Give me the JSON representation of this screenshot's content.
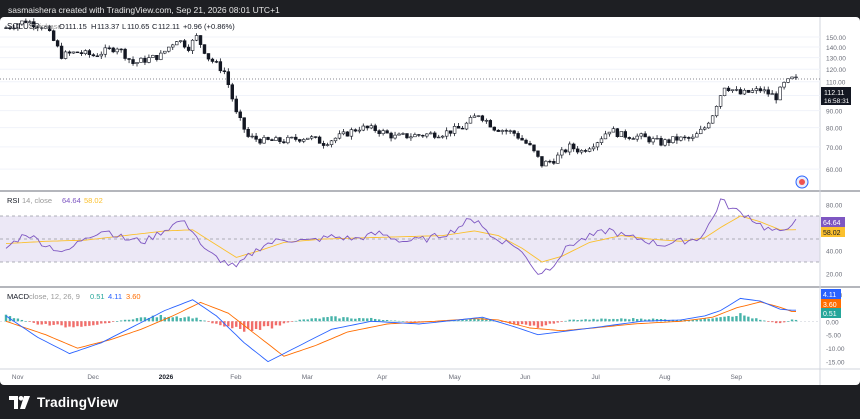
{
  "header": {
    "text": "sasmaishera created with TradingView.com, Sep 21, 2026 08:01 UTC+1"
  },
  "footer": {
    "brand": "TradingView"
  },
  "colors": {
    "up": "#2a2e39",
    "down": "#2a2e39",
    "rsi": "#7e57c2",
    "rsi_ma": "#fbc02d",
    "macd": "#2962ff",
    "signal": "#ff6d00",
    "hist_pos": "#26a69a",
    "hist_neg": "#ef5350"
  },
  "chart_data": [
    {
      "type": "candlestick",
      "title": "SOLUSD",
      "legend": {
        "symbol": "SOLUSD",
        "exchange": "Coinbase",
        "open_label": "O",
        "open": "111.15",
        "high_label": "H",
        "high": "113.37",
        "low_label": "L",
        "low": "110.65",
        "close_label": "C",
        "close": "112.11",
        "change": "+0.96 (+0.86%)"
      },
      "y_ticks": [
        "150.00",
        "140.00",
        "130.00",
        "120.00",
        "110.00",
        "100.00",
        "90.00",
        "80.00",
        "70.00",
        "60.00"
      ],
      "ylim": [
        53,
        170
      ],
      "scale": "log",
      "last_price": "112.11",
      "countdown": "16:58:31",
      "x_ticks": [
        "Nov",
        "Dec",
        "2026",
        "Feb",
        "Mar",
        "Apr",
        "May",
        "Jun",
        "Jul",
        "Aug",
        "Sep"
      ],
      "anchors": [
        [
          0,
          160
        ],
        [
          5,
          168
        ],
        [
          10,
          160
        ],
        [
          14,
          132
        ],
        [
          18,
          135
        ],
        [
          22,
          132
        ],
        [
          28,
          140
        ],
        [
          32,
          125
        ],
        [
          35,
          128
        ],
        [
          39,
          132
        ],
        [
          43,
          148
        ],
        [
          46,
          140
        ],
        [
          48,
          150
        ],
        [
          51,
          130
        ],
        [
          55,
          118
        ],
        [
          58,
          88
        ],
        [
          61,
          75
        ],
        [
          65,
          73
        ],
        [
          70,
          73
        ],
        [
          76,
          75
        ],
        [
          80,
          72
        ],
        [
          85,
          76
        ],
        [
          89,
          80
        ],
        [
          93,
          79
        ],
        [
          98,
          75
        ],
        [
          104,
          76
        ],
        [
          110,
          77
        ],
        [
          115,
          80
        ],
        [
          119,
          88
        ],
        [
          123,
          80
        ],
        [
          128,
          77
        ],
        [
          132,
          70
        ],
        [
          135,
          62
        ],
        [
          138,
          64
        ],
        [
          142,
          70
        ],
        [
          145,
          68
        ],
        [
          149,
          73
        ],
        [
          152,
          79
        ],
        [
          155,
          76
        ],
        [
          160,
          75
        ],
        [
          165,
          72
        ],
        [
          169,
          74
        ],
        [
          173,
          74
        ],
        [
          176,
          80
        ],
        [
          178,
          88
        ],
        [
          181,
          107
        ],
        [
          185,
          101
        ],
        [
          190,
          104
        ],
        [
          194,
          99
        ],
        [
          196,
          108
        ],
        [
          198,
          112
        ]
      ]
    },
    {
      "type": "line",
      "title": "RSI (14, close)",
      "legend": {
        "name": "RSI",
        "params": "14, close",
        "rsi": "64.64",
        "rsi_ma": "58.02"
      },
      "y_ticks": [
        "80.00",
        "60.00",
        "40.00",
        "20.00"
      ],
      "ylim": [
        10,
        90
      ],
      "bands": [
        70,
        50,
        30
      ],
      "series": [
        {
          "name": "RSI",
          "anchors": [
            [
              0,
              42
            ],
            [
              5,
              55
            ],
            [
              10,
              45
            ],
            [
              15,
              38
            ],
            [
              20,
              52
            ],
            [
              25,
              58
            ],
            [
              30,
              50
            ],
            [
              35,
              48
            ],
            [
              40,
              58
            ],
            [
              44,
              66
            ],
            [
              47,
              58
            ],
            [
              50,
              40
            ],
            [
              55,
              30
            ],
            [
              58,
              25
            ],
            [
              61,
              35
            ],
            [
              65,
              45
            ],
            [
              70,
              50
            ],
            [
              76,
              48
            ],
            [
              82,
              52
            ],
            [
              88,
              50
            ],
            [
              94,
              55
            ],
            [
              100,
              48
            ],
            [
              106,
              50
            ],
            [
              112,
              56
            ],
            [
              116,
              65
            ],
            [
              119,
              67
            ],
            [
              122,
              52
            ],
            [
              128,
              45
            ],
            [
              132,
              30
            ],
            [
              134,
              20
            ],
            [
              137,
              25
            ],
            [
              142,
              45
            ],
            [
              147,
              52
            ],
            [
              152,
              58
            ],
            [
              156,
              52
            ],
            [
              160,
              50
            ],
            [
              165,
              45
            ],
            [
              170,
              48
            ],
            [
              174,
              50
            ],
            [
              176,
              56
            ],
            [
              178,
              68
            ],
            [
              180,
              84
            ],
            [
              183,
              76
            ],
            [
              187,
              70
            ],
            [
              191,
              60
            ],
            [
              195,
              55
            ],
            [
              198,
              64.64
            ]
          ]
        },
        {
          "name": "RSI-based MA",
          "anchors": [
            [
              0,
              46
            ],
            [
              10,
              48
            ],
            [
              20,
              49
            ],
            [
              30,
              53
            ],
            [
              40,
              57
            ],
            [
              47,
              58
            ],
            [
              52,
              47
            ],
            [
              58,
              34
            ],
            [
              64,
              40
            ],
            [
              70,
              47
            ],
            [
              80,
              50
            ],
            [
              90,
              51
            ],
            [
              100,
              52
            ],
            [
              110,
              53
            ],
            [
              118,
              57
            ],
            [
              124,
              53
            ],
            [
              130,
              42
            ],
            [
              135,
              30
            ],
            [
              140,
              35
            ],
            [
              147,
              47
            ],
            [
              155,
              53
            ],
            [
              162,
              50
            ],
            [
              170,
              48
            ],
            [
              176,
              51
            ],
            [
              180,
              60
            ],
            [
              185,
              70
            ],
            [
              190,
              65
            ],
            [
              195,
              58
            ],
            [
              198,
              58.02
            ]
          ]
        }
      ]
    },
    {
      "type": "line",
      "title": "MACD (close, 12, 26, 9)",
      "legend": {
        "name": "MACD",
        "params": "close, 12, 26, 9",
        "histogram": "0.51",
        "macd": "4.11",
        "signal": "3.60"
      },
      "y_ticks": [
        "10.00",
        "5.00",
        "0.00",
        "-5.00",
        "-10.00",
        "-15.00"
      ],
      "ylim": [
        -17,
        12
      ],
      "series": [
        {
          "name": "MACD",
          "anchors": [
            [
              0,
              2
            ],
            [
              8,
              -6
            ],
            [
              16,
              -12
            ],
            [
              24,
              -8
            ],
            [
              32,
              -2
            ],
            [
              40,
              4
            ],
            [
              47,
              8
            ],
            [
              53,
              2
            ],
            [
              60,
              -8
            ],
            [
              66,
              -15
            ],
            [
              74,
              -9
            ],
            [
              82,
              -3
            ],
            [
              92,
              0
            ],
            [
              104,
              -1
            ],
            [
              114,
              0.5
            ],
            [
              120,
              1.5
            ],
            [
              128,
              -2
            ],
            [
              134,
              -5
            ],
            [
              142,
              -3.5
            ],
            [
              150,
              -2
            ],
            [
              160,
              0
            ],
            [
              170,
              0.5
            ],
            [
              176,
              2
            ],
            [
              180,
              4
            ],
            [
              185,
              8.5
            ],
            [
              190,
              7.5
            ],
            [
              195,
              4.5
            ],
            [
              198,
              4.11
            ]
          ]
        },
        {
          "name": "Signal",
          "anchors": [
            [
              0,
              0
            ],
            [
              10,
              -5
            ],
            [
              18,
              -10
            ],
            [
              26,
              -7
            ],
            [
              34,
              -3
            ],
            [
              42,
              2
            ],
            [
              49,
              7
            ],
            [
              56,
              3
            ],
            [
              63,
              -5
            ],
            [
              70,
              -13
            ],
            [
              78,
              -9
            ],
            [
              86,
              -4
            ],
            [
              96,
              -1
            ],
            [
              108,
              0
            ],
            [
              118,
              1
            ],
            [
              124,
              0.5
            ],
            [
              132,
              -2.5
            ],
            [
              140,
              -3.5
            ],
            [
              148,
              -2.5
            ],
            [
              158,
              -1
            ],
            [
              170,
              0
            ],
            [
              178,
              1.5
            ],
            [
              184,
              5
            ],
            [
              190,
              7.2
            ],
            [
              195,
              5.2
            ],
            [
              198,
              3.6
            ]
          ]
        },
        {
          "name": "Histogram",
          "anchors": [
            [
              0,
              2
            ],
            [
              8,
              -1
            ],
            [
              16,
              -2
            ],
            [
              24,
              -1
            ],
            [
              32,
              1
            ],
            [
              40,
              2
            ],
            [
              47,
              1.5
            ],
            [
              53,
              -1
            ],
            [
              60,
              -3
            ],
            [
              66,
              -2.5
            ],
            [
              74,
              0.5
            ],
            [
              82,
              1.5
            ],
            [
              92,
              1
            ],
            [
              104,
              -0.5
            ],
            [
              114,
              0.5
            ],
            [
              120,
              1
            ],
            [
              128,
              -1
            ],
            [
              134,
              -2
            ],
            [
              142,
              0.5
            ],
            [
              150,
              0.8
            ],
            [
              160,
              1
            ],
            [
              170,
              0.5
            ],
            [
              176,
              0.8
            ],
            [
              180,
              2
            ],
            [
              185,
              2.5
            ],
            [
              190,
              0.5
            ],
            [
              195,
              -0.8
            ],
            [
              198,
              0.51
            ]
          ]
        }
      ]
    }
  ]
}
